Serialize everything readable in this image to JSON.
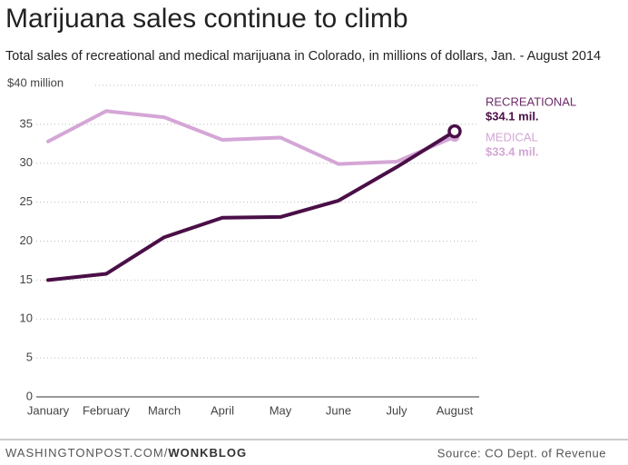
{
  "chart_data": {
    "type": "line",
    "title": "Marijuana sales continue to climb",
    "subtitle": "Total sales of recreational and medical marijuana in Colorado, in millions of dollars, Jan. - August 2014",
    "categories": [
      "January",
      "February",
      "March",
      "April",
      "May",
      "June",
      "July",
      "August"
    ],
    "series": [
      {
        "name": "MEDICAL",
        "color": "#d4a6d6",
        "values": [
          32.8,
          36.7,
          35.9,
          33.0,
          33.3,
          29.9,
          30.2,
          33.4
        ],
        "value_labels": [
          null,
          null,
          null,
          null,
          null,
          null,
          null,
          "$33.4 mil."
        ]
      },
      {
        "name": "RECREATIONAL",
        "color": "#4a0f47",
        "values": [
          15.0,
          15.8,
          20.5,
          23.0,
          23.1,
          25.2,
          29.5,
          34.1
        ],
        "value_labels": [
          null,
          null,
          null,
          null,
          null,
          null,
          null,
          "$34.1 mil."
        ]
      }
    ],
    "ylim": [
      0,
      40
    ],
    "yticks": [
      0,
      5,
      10,
      15,
      20,
      25,
      30,
      35,
      {
        "value": 40,
        "label": "$40 million"
      }
    ],
    "grid": true
  },
  "footer": {
    "site": "WASHINGTONPOST.COM/",
    "blog": "WONKBLOG",
    "source": "Source: CO Dept. of Revenue"
  }
}
